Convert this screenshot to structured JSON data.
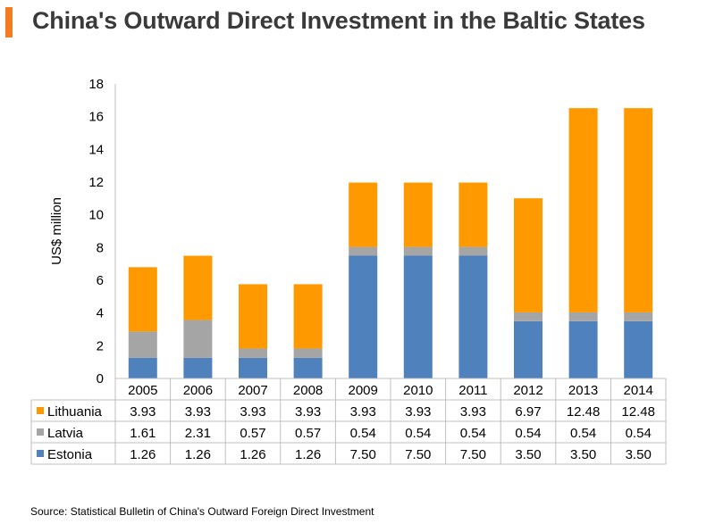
{
  "title": "China's Outward Direct Investment in the Baltic States",
  "source": "Source: Statistical Bulletin of China's Outward Foreign Direct Investment",
  "chart_data": {
    "type": "bar",
    "stacked": true,
    "title": "China's Outward Direct Investment in the Baltic States",
    "xlabel": "",
    "ylabel": "US$ million",
    "ylim": [
      0,
      18
    ],
    "yticks": [
      0,
      2,
      4,
      6,
      8,
      10,
      12,
      14,
      16,
      18
    ],
    "ytick_labels": [
      "0",
      "2",
      "4",
      "6",
      "8",
      "10",
      "12",
      "14",
      "16",
      "18"
    ],
    "grid": false,
    "legend": "data-table-below",
    "categories": [
      "2005",
      "2006",
      "2007",
      "2008",
      "2009",
      "2010",
      "2011",
      "2012",
      "2013",
      "2014"
    ],
    "series": [
      {
        "name": "Estonia",
        "color": "#4f81bd",
        "values": [
          1.26,
          1.26,
          1.26,
          1.26,
          7.5,
          7.5,
          7.5,
          3.5,
          3.5,
          3.5
        ],
        "labels": [
          "1.26",
          "1.26",
          "1.26",
          "1.26",
          "7.50",
          "7.50",
          "7.50",
          "3.50",
          "3.50",
          "3.50"
        ]
      },
      {
        "name": "Latvia",
        "color": "#a5a5a5",
        "values": [
          1.61,
          2.31,
          0.57,
          0.57,
          0.54,
          0.54,
          0.54,
          0.54,
          0.54,
          0.54
        ],
        "labels": [
          "1.61",
          "2.31",
          "0.57",
          "0.57",
          "0.54",
          "0.54",
          "0.54",
          "0.54",
          "0.54",
          "0.54"
        ]
      },
      {
        "name": "Lithuania",
        "color": "#ff9900",
        "values": [
          3.93,
          3.93,
          3.93,
          3.93,
          3.93,
          3.93,
          3.93,
          6.97,
          12.48,
          12.48
        ],
        "labels": [
          "3.93",
          "3.93",
          "3.93",
          "3.93",
          "3.93",
          "3.93",
          "3.93",
          "6.97",
          "12.48",
          "12.48"
        ]
      }
    ],
    "table_row_order": [
      "Lithuania",
      "Latvia",
      "Estonia"
    ]
  }
}
